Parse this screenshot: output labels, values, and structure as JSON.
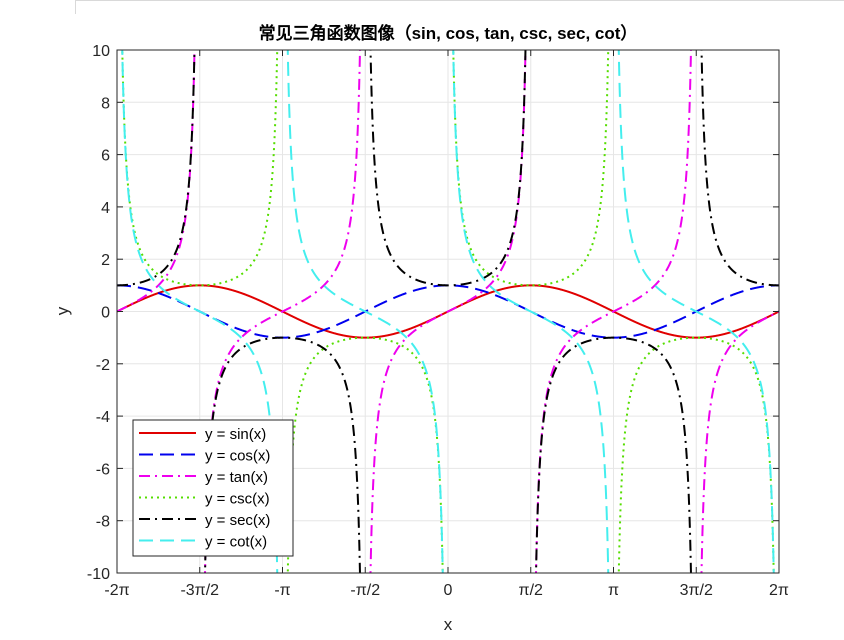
{
  "chart_data": {
    "type": "line",
    "title": "常见三角函数图像（sin, cos, tan, csc, sec, cot）",
    "xlabel": "x",
    "ylabel": "y",
    "xlim": [
      -6.283185307,
      6.283185307
    ],
    "ylim": [
      -10,
      10
    ],
    "grid": true,
    "legend_position": "bottom-left",
    "x_ticks": [
      {
        "value": -6.283185307,
        "label": "-2π"
      },
      {
        "value": -4.71238898,
        "label": "-3π/2"
      },
      {
        "value": -3.141592654,
        "label": "-π"
      },
      {
        "value": -1.570796327,
        "label": "-π/2"
      },
      {
        "value": 0,
        "label": "0"
      },
      {
        "value": 1.570796327,
        "label": "π/2"
      },
      {
        "value": 3.141592654,
        "label": "π"
      },
      {
        "value": 4.71238898,
        "label": "3π/2"
      },
      {
        "value": 6.283185307,
        "label": "2π"
      }
    ],
    "y_ticks": [
      {
        "value": 10,
        "label": "10"
      },
      {
        "value": 8,
        "label": "8"
      },
      {
        "value": 6,
        "label": "6"
      },
      {
        "value": 4,
        "label": "4"
      },
      {
        "value": 2,
        "label": "2"
      },
      {
        "value": 0,
        "label": "0"
      },
      {
        "value": -2,
        "label": "-2"
      },
      {
        "value": -4,
        "label": "-4"
      },
      {
        "value": -6,
        "label": "-6"
      },
      {
        "value": -8,
        "label": "-8"
      },
      {
        "value": -10,
        "label": "-10"
      }
    ],
    "series": [
      {
        "name": "y = sin(x)",
        "function": "sin",
        "color": "#e00000",
        "dash": "solid"
      },
      {
        "name": "y = cos(x)",
        "function": "cos",
        "color": "#0000ee",
        "dash": "dashed"
      },
      {
        "name": "y = tan(x)",
        "function": "tan",
        "color": "#ee00ee",
        "dash": "dashdot"
      },
      {
        "name": "y = csc(x)",
        "function": "csc",
        "color": "#55dd00",
        "dash": "dotted"
      },
      {
        "name": "y = sec(x)",
        "function": "sec",
        "color": "#000000",
        "dash": "dashdot"
      },
      {
        "name": "y = cot(x)",
        "function": "cot",
        "color": "#44eeee",
        "dash": "dashed"
      }
    ]
  }
}
